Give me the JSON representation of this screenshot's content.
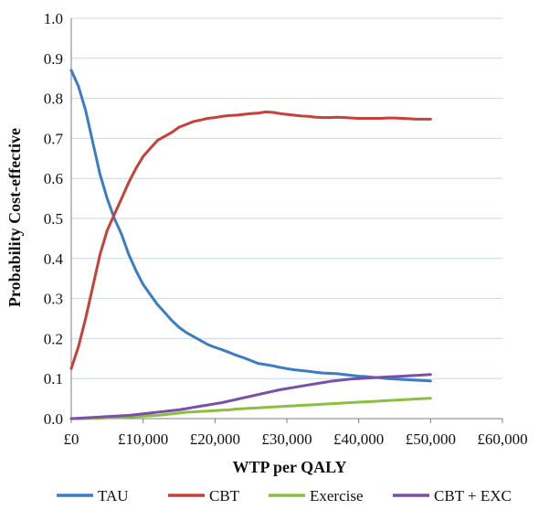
{
  "chart_data": {
    "type": "line",
    "title": "",
    "xlabel": "WTP per QALY",
    "ylabel": "Probability Cost-effective",
    "xlim": [
      0,
      60000
    ],
    "ylim": [
      0,
      1.0
    ],
    "x_ticks": [
      0,
      10000,
      20000,
      30000,
      40000,
      50000,
      60000
    ],
    "x_tick_labels": [
      "£0",
      "£10,000",
      "£20,000",
      "£30,000",
      "£40,000",
      "£50,000",
      "£60,000"
    ],
    "y_ticks": [
      0,
      0.1,
      0.2,
      0.3,
      0.4,
      0.5,
      0.6,
      0.7,
      0.8,
      0.9,
      1.0
    ],
    "y_tick_labels": [
      "0.0",
      "0.1",
      "0.2",
      "0.3",
      "0.4",
      "0.5",
      "0.6",
      "0.7",
      "0.8",
      "0.9",
      "1.0"
    ],
    "grid": "horizontal",
    "legend_position": "bottom",
    "x": [
      0,
      1000,
      2000,
      3000,
      4000,
      5000,
      6000,
      7000,
      8000,
      9000,
      10000,
      11000,
      12000,
      13000,
      14000,
      15000,
      16000,
      17000,
      18000,
      19000,
      20000,
      21000,
      22000,
      23000,
      24000,
      25000,
      26000,
      27000,
      28000,
      29000,
      30000,
      31000,
      32000,
      33000,
      34000,
      35000,
      36000,
      37000,
      38000,
      39000,
      40000,
      41000,
      42000,
      43000,
      44000,
      45000,
      46000,
      47000,
      48000,
      49000,
      50000
    ],
    "series": [
      {
        "name": "TAU",
        "color": "#3a7cc6",
        "values": [
          0.87,
          0.83,
          0.77,
          0.69,
          0.61,
          0.55,
          0.5,
          0.46,
          0.41,
          0.37,
          0.335,
          0.31,
          0.285,
          0.265,
          0.245,
          0.228,
          0.215,
          0.205,
          0.195,
          0.185,
          0.178,
          0.172,
          0.165,
          0.158,
          0.152,
          0.145,
          0.138,
          0.135,
          0.132,
          0.128,
          0.125,
          0.122,
          0.12,
          0.118,
          0.116,
          0.114,
          0.113,
          0.112,
          0.11,
          0.108,
          0.106,
          0.105,
          0.103,
          0.102,
          0.1,
          0.099,
          0.098,
          0.097,
          0.096,
          0.095,
          0.094
        ]
      },
      {
        "name": "CBT",
        "color": "#c8403a",
        "values": [
          0.125,
          0.18,
          0.25,
          0.33,
          0.41,
          0.47,
          0.51,
          0.55,
          0.59,
          0.625,
          0.655,
          0.675,
          0.695,
          0.705,
          0.715,
          0.728,
          0.735,
          0.742,
          0.746,
          0.75,
          0.752,
          0.755,
          0.757,
          0.758,
          0.76,
          0.762,
          0.763,
          0.766,
          0.765,
          0.762,
          0.76,
          0.758,
          0.756,
          0.755,
          0.753,
          0.752,
          0.752,
          0.753,
          0.752,
          0.751,
          0.75,
          0.75,
          0.75,
          0.75,
          0.751,
          0.751,
          0.75,
          0.749,
          0.748,
          0.748,
          0.748
        ]
      },
      {
        "name": "Exercise",
        "color": "#8cbf3f",
        "values": [
          0.0,
          0.0,
          0.0,
          0.001,
          0.001,
          0.002,
          0.002,
          0.003,
          0.004,
          0.005,
          0.006,
          0.007,
          0.008,
          0.01,
          0.012,
          0.014,
          0.016,
          0.017,
          0.018,
          0.019,
          0.02,
          0.021,
          0.022,
          0.024,
          0.025,
          0.026,
          0.027,
          0.028,
          0.029,
          0.03,
          0.031,
          0.032,
          0.033,
          0.034,
          0.035,
          0.036,
          0.037,
          0.038,
          0.039,
          0.04,
          0.041,
          0.042,
          0.043,
          0.044,
          0.045,
          0.046,
          0.047,
          0.048,
          0.049,
          0.05,
          0.051
        ]
      },
      {
        "name": "CBT + EXC",
        "color": "#7b4fa6",
        "values": [
          0.0,
          0.001,
          0.002,
          0.003,
          0.004,
          0.005,
          0.006,
          0.007,
          0.008,
          0.01,
          0.012,
          0.014,
          0.016,
          0.018,
          0.02,
          0.022,
          0.025,
          0.028,
          0.031,
          0.034,
          0.037,
          0.04,
          0.044,
          0.048,
          0.052,
          0.056,
          0.06,
          0.064,
          0.068,
          0.072,
          0.075,
          0.078,
          0.081,
          0.084,
          0.087,
          0.09,
          0.093,
          0.095,
          0.097,
          0.099,
          0.1,
          0.101,
          0.102,
          0.103,
          0.104,
          0.105,
          0.106,
          0.107,
          0.108,
          0.109,
          0.11
        ]
      }
    ]
  }
}
